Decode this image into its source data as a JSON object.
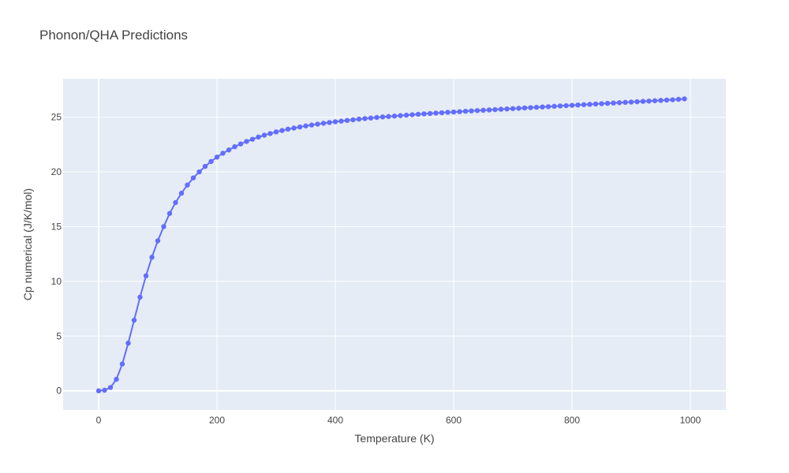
{
  "chart_data": {
    "type": "line",
    "title": "Phonon/QHA Predictions",
    "xlabel": "Temperature (K)",
    "ylabel": "Cp numerical (J/K/mol)",
    "xlim": [
      -60,
      1060
    ],
    "ylim": [
      -1.75,
      28.5
    ],
    "xticks": [
      0,
      200,
      400,
      600,
      800,
      1000
    ],
    "yticks": [
      0,
      5,
      10,
      15,
      20,
      25
    ],
    "grid": true,
    "colors": {
      "plot_bg": "#e5ecf6",
      "grid": "#ffffff",
      "series": "#636efa"
    },
    "series": [
      {
        "mode": "lines+markers",
        "x": [
          0,
          10,
          20,
          30,
          40,
          50,
          60,
          70,
          80,
          90,
          100,
          110,
          120,
          130,
          140,
          150,
          160,
          170,
          180,
          190,
          200,
          210,
          220,
          230,
          240,
          250,
          260,
          270,
          280,
          290,
          300,
          310,
          320,
          330,
          340,
          350,
          360,
          370,
          380,
          390,
          400,
          410,
          420,
          430,
          440,
          450,
          460,
          470,
          480,
          490,
          500,
          510,
          520,
          530,
          540,
          550,
          560,
          570,
          580,
          590,
          600,
          610,
          620,
          630,
          640,
          650,
          660,
          670,
          680,
          690,
          700,
          710,
          720,
          730,
          740,
          750,
          760,
          770,
          780,
          790,
          800,
          810,
          820,
          830,
          840,
          850,
          860,
          870,
          880,
          890,
          900,
          910,
          920,
          930,
          940,
          950,
          960,
          970,
          980,
          990
        ],
        "y": [
          0,
          0.05,
          0.3,
          1.05,
          2.45,
          4.35,
          6.45,
          8.55,
          10.5,
          12.2,
          13.7,
          15.0,
          16.2,
          17.2,
          18.05,
          18.8,
          19.45,
          20.0,
          20.5,
          20.95,
          21.35,
          21.7,
          22.0,
          22.3,
          22.55,
          22.78,
          22.98,
          23.18,
          23.35,
          23.5,
          23.65,
          23.78,
          23.9,
          24.0,
          24.1,
          24.2,
          24.28,
          24.36,
          24.44,
          24.51,
          24.58,
          24.64,
          24.7,
          24.76,
          24.82,
          24.87,
          24.92,
          24.97,
          25.02,
          25.06,
          25.1,
          25.14,
          25.18,
          25.22,
          25.26,
          25.3,
          25.33,
          25.37,
          25.4,
          25.44,
          25.47,
          25.5,
          25.54,
          25.57,
          25.6,
          25.63,
          25.66,
          25.69,
          25.72,
          25.75,
          25.78,
          25.81,
          25.84,
          25.87,
          25.9,
          25.93,
          25.96,
          25.99,
          26.02,
          26.05,
          26.08,
          26.11,
          26.14,
          26.17,
          26.2,
          26.23,
          26.26,
          26.29,
          26.32,
          26.35,
          26.38,
          26.41,
          26.44,
          26.47,
          26.5,
          26.53,
          26.56,
          26.59,
          26.63,
          26.67
        ]
      }
    ]
  }
}
